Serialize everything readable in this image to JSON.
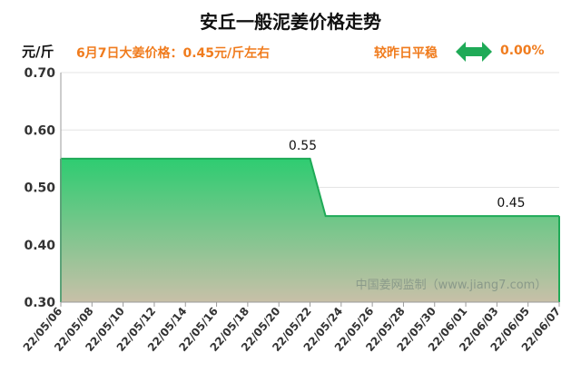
{
  "header": {
    "title": "安丘一般泥姜价格走势",
    "unit": "元/斤",
    "price_note": "6月7日大姜价格：0.45元/斤左右",
    "compare_label": "较昨日平稳",
    "change_value": "0.00%",
    "arrow_icon": "double-arrow-icon",
    "accent_color": "#f07c1e",
    "arrow_color": "#1faa57"
  },
  "chart_data": {
    "type": "area",
    "title": "安丘一般泥姜价格走势",
    "ylabel": "元/斤",
    "xlabel": "",
    "ylim": [
      0.3,
      0.7
    ],
    "yticks": [
      "0.70",
      "0.60",
      "0.50",
      "0.40",
      "0.30"
    ],
    "yticks_values": [
      0.7,
      0.6,
      0.5,
      0.4,
      0.3
    ],
    "categories": [
      "22/05/06",
      "22/05/08",
      "22/05/10",
      "22/05/12",
      "22/05/14",
      "22/05/16",
      "22/05/18",
      "22/05/20",
      "22/05/22",
      "22/05/24",
      "22/05/26",
      "22/05/28",
      "22/05/30",
      "22/06/01",
      "22/06/03",
      "22/06/05",
      "22/06/07"
    ],
    "points": [
      {
        "x": "22/05/06",
        "y": 0.55
      },
      {
        "x": "22/05/22",
        "y": 0.55
      },
      {
        "x": "22/05/23",
        "y": 0.45
      },
      {
        "x": "22/06/07",
        "y": 0.45
      }
    ],
    "annotations": [
      {
        "x": "22/05/22",
        "y": 0.55,
        "text": "0.55"
      },
      {
        "x": "22/06/07",
        "y": 0.45,
        "text": "0.45"
      }
    ],
    "watermark": "中国姜网监制（www.jiang7.com）",
    "grid": true,
    "colors": {
      "line": "#1faa57",
      "fill_top": "#2ecc71",
      "fill_bottom": "#c8c0a8"
    }
  }
}
